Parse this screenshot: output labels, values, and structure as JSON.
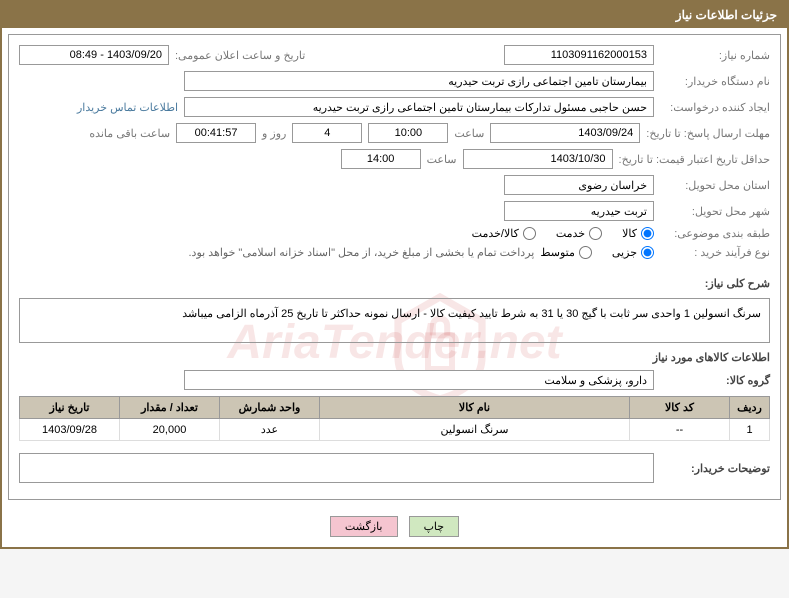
{
  "header": {
    "title": "جزئیات اطلاعات نیاز"
  },
  "fields": {
    "need_number_label": "شماره نیاز:",
    "need_number": "1103091162000153",
    "announce_label": "تاریخ و ساعت اعلان عمومی:",
    "announce": "1403/09/20 - 08:49",
    "buyer_org_label": "نام دستگاه خریدار:",
    "buyer_org": "بیمارستان تامین اجتماعی رازی تربت حیدریه",
    "creator_label": "ایجاد کننده درخواست:",
    "creator": "حسن حاجبی مسئول تدارکات بیمارستان تامین اجتماعی رازی تربت حیدریه",
    "contact_link": "اطلاعات تماس خریدار",
    "deadline_label": "مهلت ارسال پاسخ: تا تاریخ:",
    "deadline_date": "1403/09/24",
    "time_label": "ساعت",
    "deadline_time": "10:00",
    "days": "4",
    "days_label": "روز و",
    "remaining_time": "00:41:57",
    "remaining_label": "ساعت باقی مانده",
    "validity_label": "حداقل تاریخ اعتبار قیمت: تا تاریخ:",
    "validity_date": "1403/10/30",
    "validity_time": "14:00",
    "province_label": "استان محل تحویل:",
    "province": "خراسان رضوی",
    "city_label": "شهر محل تحویل:",
    "city": "تربت حیدریه",
    "category_label": "طبقه بندی موضوعی:",
    "cat_goods": "کالا",
    "cat_service": "خدمت",
    "cat_both": "کالا/خدمت",
    "process_label": "نوع فرآیند خرید :",
    "proc_partial": "جزیی",
    "proc_medium": "متوسط",
    "payment_note": "پرداخت تمام یا بخشی از مبلغ خرید، از محل \"اسناد خزانه اسلامی\" خواهد بود.",
    "desc_label": "شرح کلی نیاز:",
    "desc": "سرنگ انسولین 1 واحدی  سر ثابت با گیج 30 یا 31 به شرط تایید کیفیت کالا - ارسال نمونه حداکثر تا تاریخ 25 آذرماه الزامی میباشد",
    "items_label": "اطلاعات کالاهای مورد نیاز",
    "group_label": "گروه کالا:",
    "group": "دارو، پزشکی و سلامت",
    "buyer_notes_label": "توضیحات خریدار:",
    "buyer_notes": ""
  },
  "table": {
    "headers": {
      "row": "ردیف",
      "code": "کد کالا",
      "name": "نام کالا",
      "unit": "واحد شمارش",
      "qty": "تعداد / مقدار",
      "date": "تاریخ نیاز"
    },
    "rows": [
      {
        "row": "1",
        "code": "--",
        "name": "سرنگ انسولین",
        "unit": "عدد",
        "qty": "20,000",
        "date": "1403/09/28"
      }
    ]
  },
  "buttons": {
    "print": "چاپ",
    "back": "بازگشت"
  },
  "watermark": "AriaTender.net",
  "colors": {
    "header_bg": "#8a7348",
    "th_bg": "#ccc5b4"
  }
}
